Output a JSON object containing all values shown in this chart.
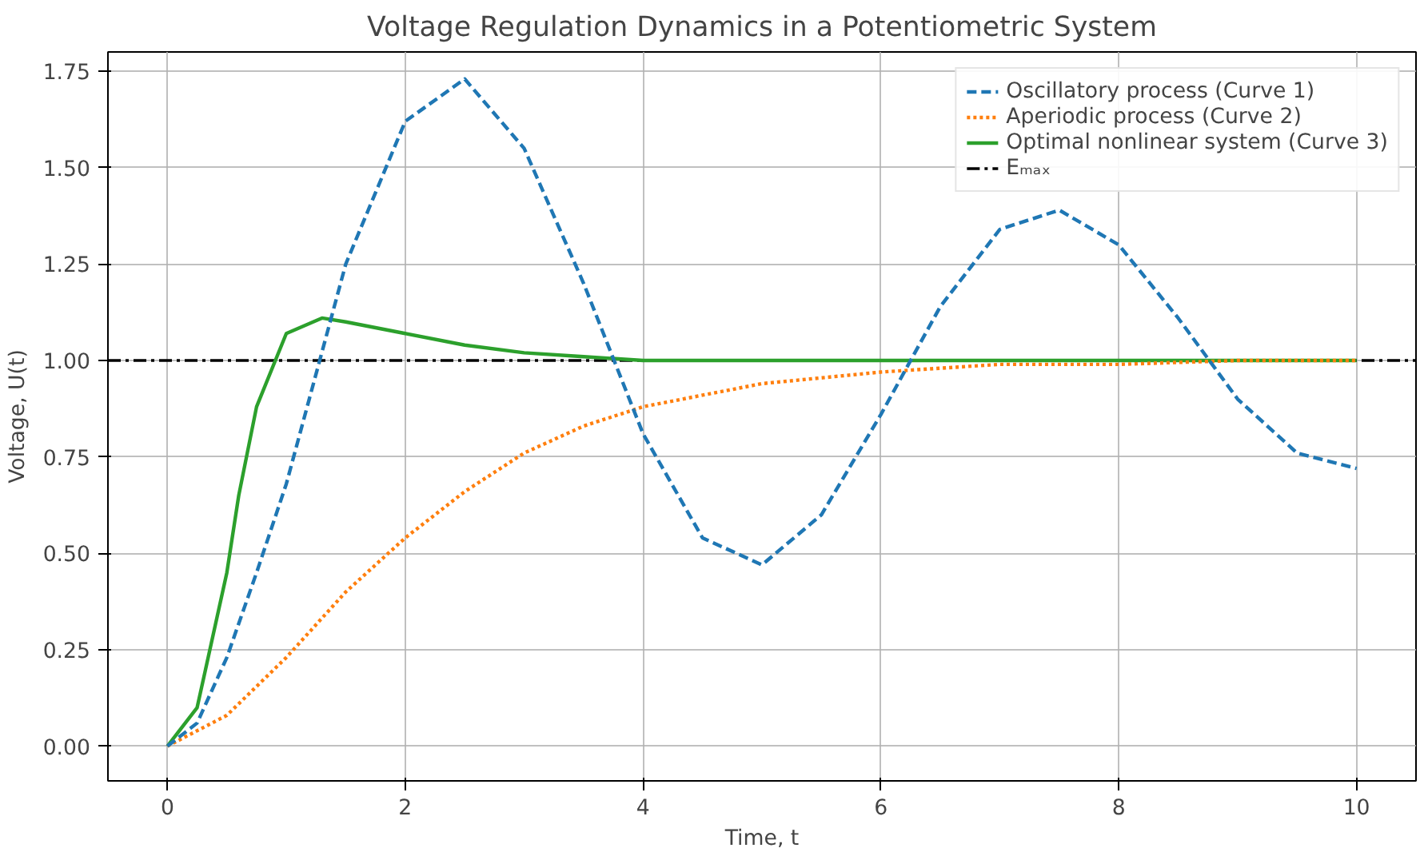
{
  "chart_data": {
    "type": "line",
    "title": "Voltage Regulation Dynamics in a Potentiometric System",
    "xlabel": "Time, t",
    "ylabel": "Voltage, U(t)",
    "xlim": [
      -0.5,
      10.5
    ],
    "ylim": [
      -0.09,
      1.8
    ],
    "xticks": [
      0,
      2,
      4,
      6,
      8,
      10
    ],
    "yticks": [
      {
        "value": 0,
        "label": "0.00"
      },
      {
        "value": 0.25,
        "label": "0.25"
      },
      {
        "value": 0.5,
        "label": "0.50"
      },
      {
        "value": 0.75,
        "label": "0.75"
      },
      {
        "value": 1,
        "label": "1.00"
      },
      {
        "value": 1.25,
        "label": "1.25"
      },
      {
        "value": 1.5,
        "label": "1.50"
      },
      {
        "value": 1.75,
        "label": "1.75"
      }
    ],
    "grid": true,
    "legend": "top right",
    "series": [
      {
        "name": "Oscillatory process (Curve 1)",
        "color": "#1f77b4",
        "line_style": "dashed",
        "x": [
          0,
          0.25,
          0.5,
          0.75,
          1,
          1.5,
          2,
          2.5,
          3,
          3.5,
          4,
          4.5,
          5,
          5.5,
          6,
          6.5,
          7,
          7.5,
          8,
          8.5,
          9,
          9.5,
          10
        ],
        "values": [
          0,
          0.06,
          0.23,
          0.45,
          0.68,
          1.25,
          1.62,
          1.73,
          1.55,
          1.2,
          0.81,
          0.54,
          0.47,
          0.6,
          0.86,
          1.14,
          1.34,
          1.39,
          1.3,
          1.11,
          0.9,
          0.76,
          0.72
        ]
      },
      {
        "name": "Aperiodic process (Curve 2)",
        "color": "#ff7f0e",
        "line_style": "dotted",
        "x": [
          0,
          0.5,
          1,
          1.5,
          2,
          2.5,
          3,
          3.5,
          4,
          5,
          6,
          7,
          8,
          9,
          10
        ],
        "values": [
          0,
          0.08,
          0.23,
          0.4,
          0.54,
          0.66,
          0.76,
          0.83,
          0.88,
          0.94,
          0.97,
          0.99,
          0.99,
          1.0,
          1.0
        ]
      },
      {
        "name": "Optimal nonlinear system (Curve 3)",
        "color": "#2ca02c",
        "line_style": "solid",
        "x": [
          0,
          0.25,
          0.5,
          0.6,
          0.75,
          1,
          1.3,
          1.5,
          2,
          2.5,
          3,
          3.5,
          4,
          5,
          6,
          7,
          8,
          9,
          10
        ],
        "values": [
          0,
          0.1,
          0.45,
          0.65,
          0.88,
          1.07,
          1.11,
          1.1,
          1.07,
          1.04,
          1.02,
          1.01,
          1.0,
          1.0,
          1.0,
          1.0,
          1.0,
          1.0,
          1.0
        ]
      }
    ],
    "ref_lines": [
      {
        "axis": "y",
        "value": 1,
        "label": "Eₘₐₓ",
        "color": "#000000",
        "line_style": "dashdot"
      }
    ]
  }
}
